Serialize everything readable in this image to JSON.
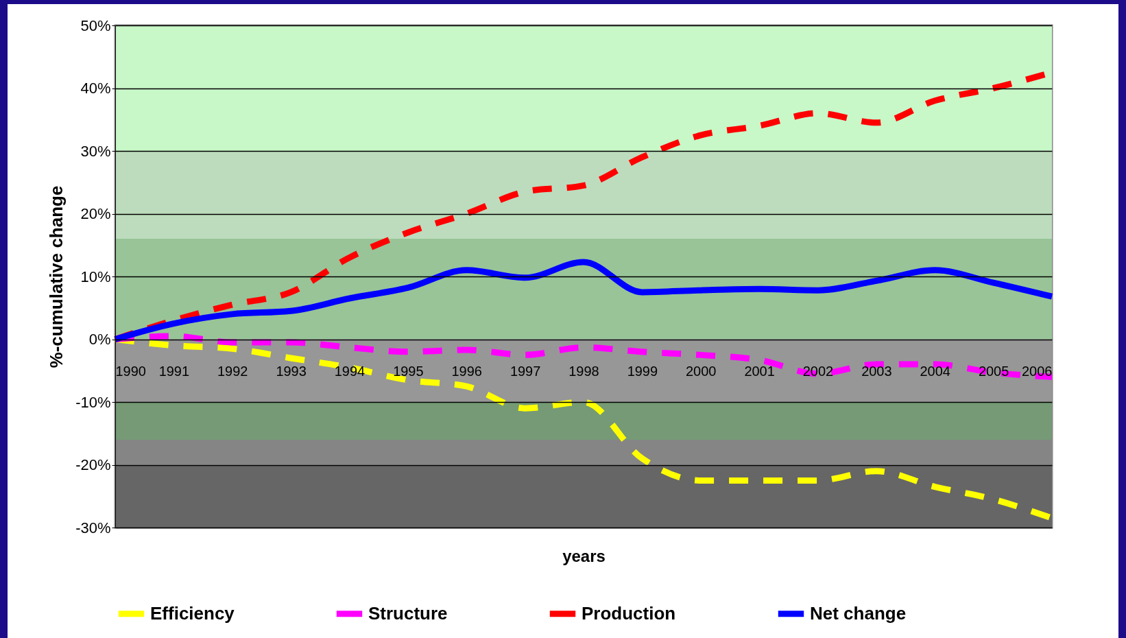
{
  "chart_data": {
    "type": "line",
    "xlabel": "years",
    "ylabel": "%-cumulative change",
    "x": [
      1990,
      1991,
      1992,
      1993,
      1994,
      1995,
      1996,
      1997,
      1998,
      1999,
      2000,
      2001,
      2002,
      2003,
      2004,
      2005,
      2006
    ],
    "series": [
      {
        "name": "Efficiency",
        "color": "#ffff00",
        "line_style": "dashed",
        "values": [
          0,
          -1,
          -1.5,
          -3,
          -4.5,
          -6.5,
          -7.5,
          -11,
          -10,
          -19,
          -22.5,
          -22.5,
          -22.5,
          -21,
          -23.5,
          -25.5,
          -28.5
        ]
      },
      {
        "name": "Structure",
        "color": "#ff00ff",
        "line_style": "dashed",
        "values": [
          0,
          0.5,
          -0.5,
          -0.5,
          -1.3,
          -2,
          -1.7,
          -2.5,
          -1.3,
          -2,
          -2.5,
          -3.3,
          -5.5,
          -4,
          -4,
          -5.3,
          -6
        ]
      },
      {
        "name": "Production",
        "color": "#ff0000",
        "line_style": "dashed",
        "values": [
          0,
          3,
          5.5,
          7.5,
          13,
          17,
          20,
          23.5,
          24.5,
          29,
          32.5,
          34,
          36,
          34.5,
          38,
          40,
          42.5
        ]
      },
      {
        "name": "Net change",
        "color": "#0000ff",
        "line_style": "solid",
        "values": [
          0,
          2.5,
          4,
          4.5,
          6.5,
          8.2,
          11,
          9.8,
          12.3,
          7.5,
          7.8,
          8,
          7.8,
          9.3,
          11,
          9,
          6.8
        ]
      }
    ],
    "xlim": [
      1990,
      2006
    ],
    "xticks": [
      1990,
      1991,
      1992,
      1993,
      1994,
      1995,
      1996,
      1997,
      1998,
      1999,
      2000,
      2001,
      2002,
      2003,
      2004,
      2005,
      2006
    ],
    "ylim": [
      -30,
      50
    ],
    "yticks": [
      {
        "value": -30,
        "label": "-30%"
      },
      {
        "value": -20,
        "label": "-20%"
      },
      {
        "value": -10,
        "label": "-10%"
      },
      {
        "value": 0,
        "label": "0%"
      },
      {
        "value": 10,
        "label": "10%"
      },
      {
        "value": 20,
        "label": "20%"
      },
      {
        "value": 30,
        "label": "30%"
      },
      {
        "value": 40,
        "label": "40%"
      },
      {
        "value": 50,
        "label": "50%"
      }
    ],
    "bands": [
      {
        "axis": "y",
        "from": 30,
        "to": 50,
        "color": "#c8f7c8"
      },
      {
        "axis": "y",
        "from": 16,
        "to": 30,
        "color": "#bddcbd"
      },
      {
        "axis": "y",
        "from": 0,
        "to": 16,
        "color": "#98c498"
      },
      {
        "axis": "y",
        "from": -10,
        "to": 0,
        "color": "#979797"
      },
      {
        "axis": "y",
        "from": -16,
        "to": -10,
        "color": "#759a75"
      },
      {
        "axis": "y",
        "from": -20,
        "to": -16,
        "color": "#858585"
      },
      {
        "axis": "y",
        "from": -30,
        "to": -20,
        "color": "#666666"
      }
    ],
    "grid": "y",
    "legend": "bottom",
    "marker": "none"
  }
}
